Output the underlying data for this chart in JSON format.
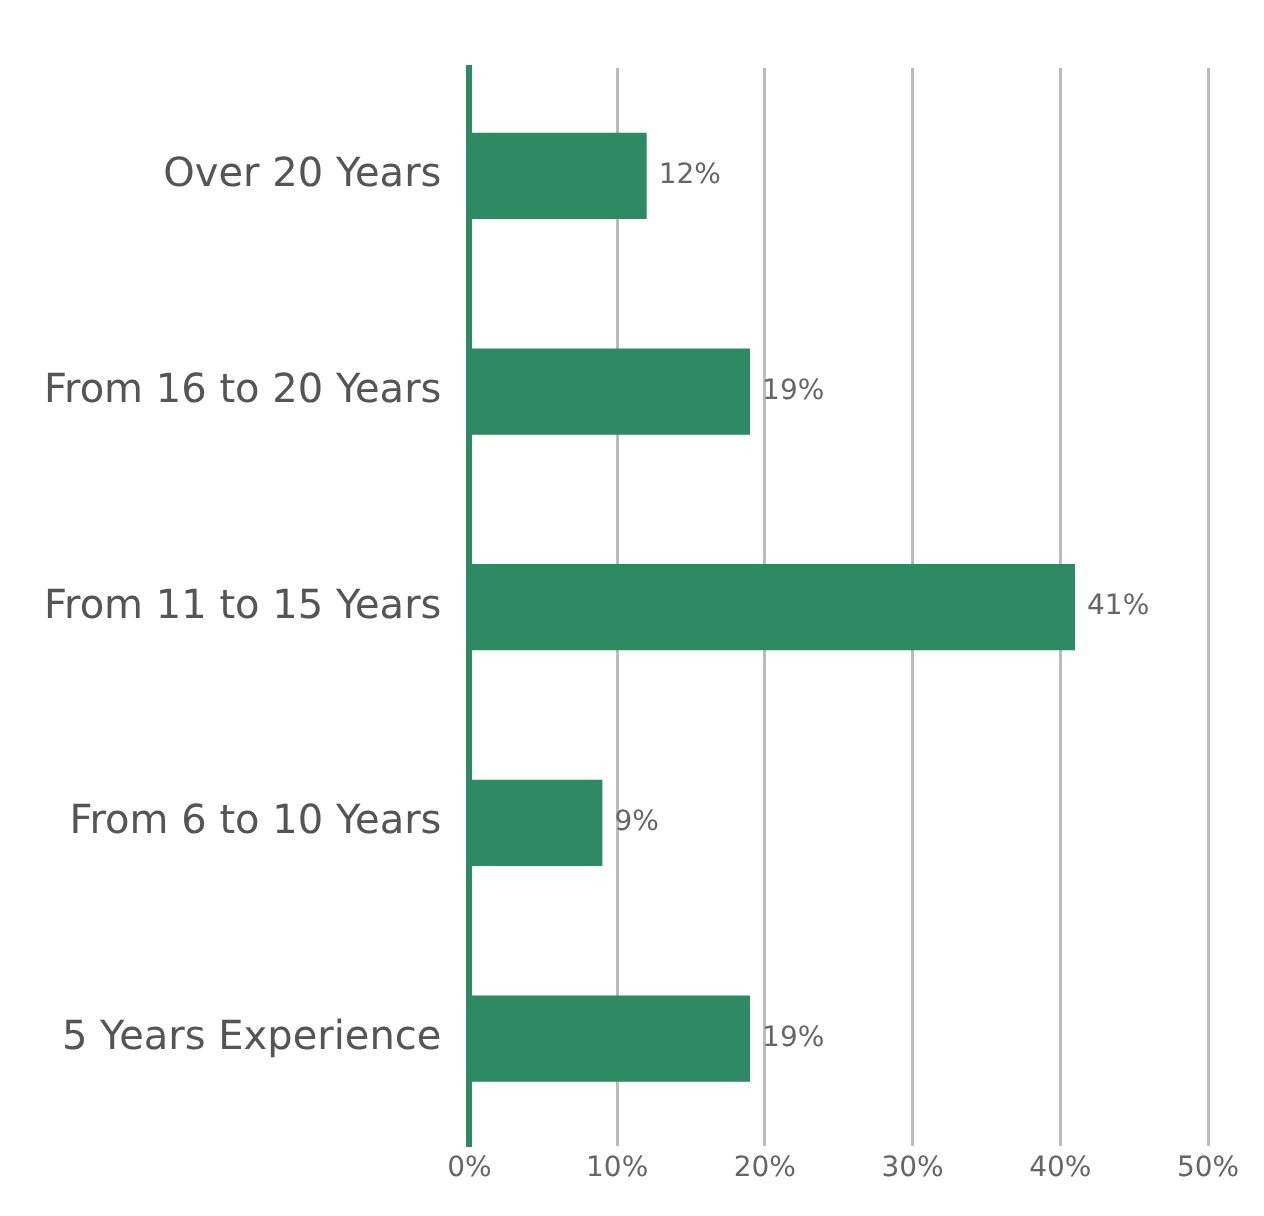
{
  "chart_data": {
    "type": "bar",
    "orientation": "horizontal",
    "categories": [
      "Over 20 Years",
      "From 16 to 20 Years",
      "From 11 to 15 Years",
      "From 6 to 10 Years",
      "5 Years Experience"
    ],
    "values": [
      12,
      19,
      41,
      9,
      19
    ],
    "value_labels": [
      "12%",
      "19%",
      "41%",
      "9%",
      "19%"
    ],
    "color": "#2e8a63",
    "xlim": [
      0,
      50
    ],
    "xticks": [
      {
        "value": 0,
        "label": "0%"
      },
      {
        "value": 10,
        "label": "10%"
      },
      {
        "value": 20,
        "label": "20%"
      },
      {
        "value": 30,
        "label": "30%"
      },
      {
        "value": 40,
        "label": "40%"
      },
      {
        "value": 50,
        "label": "50%"
      }
    ],
    "grid": "x"
  }
}
